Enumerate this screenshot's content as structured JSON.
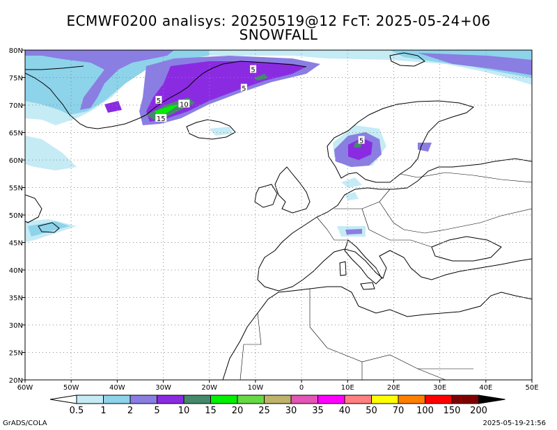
{
  "title": {
    "line1": "ECMWF0200 analisys: 20250519@12 FcT: 2025-05-24+06",
    "line2": "SNOWFALL"
  },
  "axes": {
    "lon_min": -60,
    "lon_max": 50,
    "lat_min": 20,
    "lat_max": 80,
    "x_ticks": [
      {
        "v": -60,
        "label": "60W"
      },
      {
        "v": -50,
        "label": "50W"
      },
      {
        "v": -40,
        "label": "40W"
      },
      {
        "v": -30,
        "label": "30W"
      },
      {
        "v": -20,
        "label": "20W"
      },
      {
        "v": -10,
        "label": "10W"
      },
      {
        "v": 0,
        "label": "0"
      },
      {
        "v": 10,
        "label": "10E"
      },
      {
        "v": 20,
        "label": "20E"
      },
      {
        "v": 30,
        "label": "30E"
      },
      {
        "v": 40,
        "label": "40E"
      },
      {
        "v": 50,
        "label": "50E"
      }
    ],
    "y_ticks": [
      {
        "v": 80,
        "label": "80N"
      },
      {
        "v": 75,
        "label": "75N"
      },
      {
        "v": 70,
        "label": "70N"
      },
      {
        "v": 65,
        "label": "65N"
      },
      {
        "v": 60,
        "label": "60N"
      },
      {
        "v": 55,
        "label": "55N"
      },
      {
        "v": 50,
        "label": "50N"
      },
      {
        "v": 45,
        "label": "45N"
      },
      {
        "v": 40,
        "label": "40N"
      },
      {
        "v": 35,
        "label": "35N"
      },
      {
        "v": 30,
        "label": "30N"
      },
      {
        "v": 25,
        "label": "25N"
      },
      {
        "v": 20,
        "label": "20N"
      }
    ],
    "grid": true
  },
  "legend": {
    "colors": [
      "#ffffff",
      "#c5ebf5",
      "#8dd3ea",
      "#8a7ee2",
      "#8a2be2",
      "#45896b",
      "#00f000",
      "#66d944",
      "#bfb26a",
      "#e356b5",
      "#ff00ff",
      "#ff8080",
      "#ffff00",
      "#ff8000",
      "#ff0000",
      "#800000",
      "#000000"
    ],
    "labels": [
      "0.5",
      "1",
      "2",
      "5",
      "10",
      "15",
      "20",
      "25",
      "30",
      "35",
      "40",
      "50",
      "70",
      "100",
      "150",
      "200"
    ]
  },
  "contour_labels": [
    {
      "text": "5",
      "lon": -10.5,
      "lat": 76.5
    },
    {
      "text": "5",
      "lon": -12.5,
      "lat": 73.1
    },
    {
      "text": "5",
      "lon": -31.0,
      "lat": 70.9
    },
    {
      "text": "10",
      "lon": -25.5,
      "lat": 70.2
    },
    {
      "text": "15",
      "lon": -30.5,
      "lat": 67.6
    },
    {
      "text": "5",
      "lon": 13.0,
      "lat": 63.6
    }
  ],
  "footer": {
    "left": "GrADS/COLA",
    "right": "2025-05-19-21:56"
  }
}
